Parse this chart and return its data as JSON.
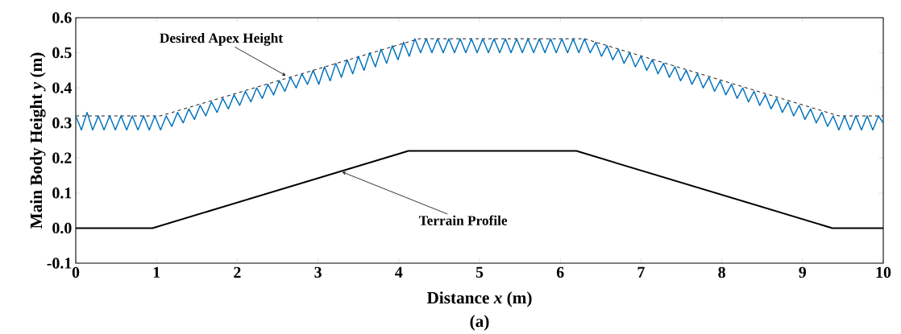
{
  "chart_data": {
    "type": "line",
    "xlabel": "Distance *x* (m)",
    "ylabel": "Main Body Height *y* (m)",
    "xlim": [
      0,
      10
    ],
    "ylim": [
      -0.1,
      0.6
    ],
    "xticks": [
      0,
      1,
      2,
      3,
      4,
      5,
      6,
      7,
      8,
      9,
      10
    ],
    "yticks": [
      {
        "value": -0.1,
        "label": "-0.1"
      },
      {
        "value": 0,
        "label": "0.0"
      },
      {
        "value": 0.1,
        "label": "0.1"
      },
      {
        "value": 0.2,
        "label": "0.2"
      },
      {
        "value": 0.3,
        "label": "0.3"
      },
      {
        "value": 0.4,
        "label": "0.4"
      },
      {
        "value": 0.5,
        "label": "0.5"
      },
      {
        "value": 0.6,
        "label": "0.6"
      }
    ],
    "marker": "none",
    "series": [
      {
        "color": "#000000",
        "line_style": "solid",
        "x": [
          0,
          0.95,
          4.12,
          6.2,
          9.37,
          10
        ],
        "values": [
          0,
          0,
          0.22,
          0.22,
          0,
          0
        ]
      },
      {
        "color": "#000000",
        "line_style": "dashed",
        "x": [
          0,
          1.05,
          4.25,
          6.3,
          9.45,
          10
        ],
        "values": [
          0.32,
          0.32,
          0.54,
          0.54,
          0.32,
          0.32
        ]
      },
      {
        "color": "#0072bd",
        "line_style": "solid",
        "x": [
          0,
          0.07,
          0.14,
          0.21,
          0.28,
          0.35,
          0.42,
          0.49,
          0.56,
          0.63,
          0.7,
          0.77,
          0.84,
          0.91,
          0.98,
          1.05,
          1.12,
          1.19,
          1.26,
          1.33,
          1.4,
          1.47,
          1.54,
          1.61,
          1.68,
          1.75,
          1.82,
          1.89,
          1.96,
          2.03,
          2.1,
          2.17,
          2.24,
          2.31,
          2.38,
          2.45,
          2.52,
          2.59,
          2.66,
          2.73,
          2.8,
          2.87,
          2.94,
          3.01,
          3.08,
          3.15,
          3.22,
          3.29,
          3.36,
          3.43,
          3.5,
          3.57,
          3.64,
          3.71,
          3.78,
          3.85,
          3.92,
          3.99,
          4.06,
          4.13,
          4.2,
          4.27,
          4.34,
          4.41,
          4.48,
          4.55,
          4.62,
          4.69,
          4.76,
          4.83,
          4.9,
          4.97,
          5.04,
          5.11,
          5.18,
          5.25,
          5.32,
          5.39,
          5.46,
          5.53,
          5.6,
          5.67,
          5.74,
          5.81,
          5.88,
          5.95,
          6.02,
          6.09,
          6.16,
          6.23,
          6.3,
          6.37,
          6.44,
          6.51,
          6.58,
          6.65,
          6.72,
          6.79,
          6.86,
          6.93,
          7,
          7.07,
          7.14,
          7.21,
          7.28,
          7.35,
          7.42,
          7.49,
          7.56,
          7.63,
          7.7,
          7.77,
          7.84,
          7.91,
          7.98,
          8.05,
          8.12,
          8.19,
          8.26,
          8.33,
          8.4,
          8.47,
          8.54,
          8.61,
          8.68,
          8.75,
          8.82,
          8.89,
          8.96,
          9.03,
          9.1,
          9.17,
          9.24,
          9.31,
          9.38,
          9.45,
          9.52,
          9.59,
          9.66,
          9.73,
          9.8,
          9.87,
          9.94,
          10
        ],
        "values": [
          0.32,
          0.28,
          0.33,
          0.28,
          0.32,
          0.28,
          0.32,
          0.28,
          0.32,
          0.28,
          0.32,
          0.28,
          0.32,
          0.28,
          0.32,
          0.28,
          0.32,
          0.29,
          0.33,
          0.3,
          0.34,
          0.31,
          0.35,
          0.32,
          0.36,
          0.33,
          0.37,
          0.34,
          0.38,
          0.35,
          0.39,
          0.36,
          0.4,
          0.37,
          0.41,
          0.38,
          0.42,
          0.39,
          0.43,
          0.4,
          0.44,
          0.41,
          0.45,
          0.41,
          0.46,
          0.42,
          0.47,
          0.43,
          0.48,
          0.44,
          0.49,
          0.45,
          0.5,
          0.46,
          0.51,
          0.47,
          0.52,
          0.48,
          0.53,
          0.49,
          0.54,
          0.5,
          0.54,
          0.5,
          0.54,
          0.5,
          0.54,
          0.5,
          0.54,
          0.5,
          0.54,
          0.5,
          0.54,
          0.5,
          0.54,
          0.5,
          0.54,
          0.5,
          0.54,
          0.5,
          0.54,
          0.5,
          0.54,
          0.5,
          0.54,
          0.5,
          0.54,
          0.5,
          0.54,
          0.5,
          0.54,
          0.5,
          0.53,
          0.49,
          0.52,
          0.48,
          0.51,
          0.47,
          0.5,
          0.46,
          0.49,
          0.45,
          0.48,
          0.44,
          0.47,
          0.43,
          0.46,
          0.42,
          0.45,
          0.41,
          0.44,
          0.4,
          0.43,
          0.39,
          0.42,
          0.38,
          0.41,
          0.37,
          0.4,
          0.36,
          0.39,
          0.35,
          0.38,
          0.34,
          0.37,
          0.33,
          0.36,
          0.32,
          0.35,
          0.31,
          0.34,
          0.3,
          0.33,
          0.29,
          0.32,
          0.28,
          0.32,
          0.28,
          0.32,
          0.28,
          0.32,
          0.28,
          0.32,
          0.3
        ]
      }
    ],
    "annotations": [
      {
        "text": "Desired Apex Height",
        "x": 2.6,
        "y": 0.435
      },
      {
        "text": "Terrain Profile",
        "x": 3.3,
        "y": 0.16
      },
      "(a)"
    ]
  }
}
